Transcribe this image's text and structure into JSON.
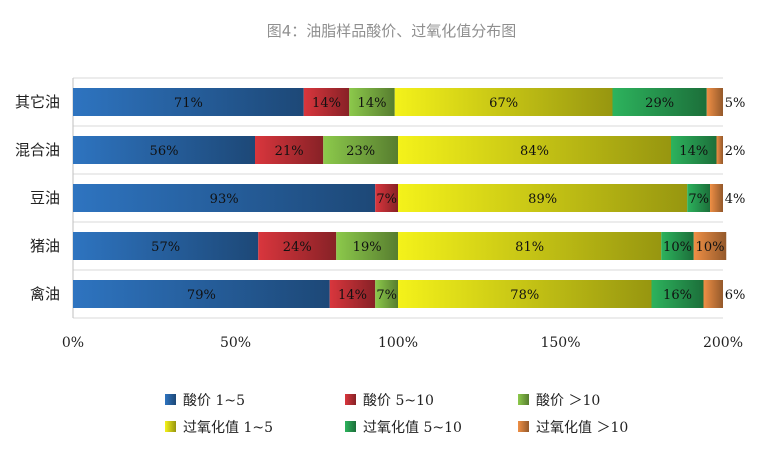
{
  "chart_data": {
    "type": "bar",
    "orientation": "horizontal",
    "stacked": true,
    "title": "图4：油脂样品酸价、过氧化值分布图",
    "categories": [
      "其它油",
      "混合油",
      "豆油",
      "猪油",
      "禽油"
    ],
    "series": [
      {
        "name": "酸价 1~5",
        "color": "#2e74c0",
        "values": [
          71,
          56,
          93,
          57,
          79
        ]
      },
      {
        "name": "酸价 5~10",
        "color": "#d9363d",
        "values": [
          14,
          21,
          7,
          24,
          14
        ]
      },
      {
        "name": "酸价 ＞10",
        "color": "#8cc94b",
        "values": [
          14,
          23,
          0,
          19,
          7
        ]
      },
      {
        "name": "过氧化值 1~5",
        "color": "#f4f21a",
        "values": [
          67,
          84,
          89,
          81,
          78
        ]
      },
      {
        "name": "过氧化值 5~10",
        "color": "#2db35d",
        "values": [
          29,
          14,
          7,
          10,
          16
        ]
      },
      {
        "name": "过氧化值 ＞10",
        "color": "#ef8f45",
        "values": [
          5,
          2,
          4,
          10,
          6
        ]
      }
    ],
    "data_labels": [
      [
        "71%",
        "14%",
        "14%",
        "67%",
        "29%",
        "5%"
      ],
      [
        "56%",
        "21%",
        "23%",
        "84%",
        "14%",
        "2%"
      ],
      [
        "93%",
        "7%",
        "",
        "89%",
        "7%",
        "4%"
      ],
      [
        "57%",
        "24%",
        "19%",
        "81%",
        "10%",
        "10%"
      ],
      [
        "79%",
        "14%",
        "7%",
        "78%",
        "16%",
        "6%"
      ]
    ],
    "x_ticks": [
      "0%",
      "50%",
      "100%",
      "150%",
      "200%"
    ],
    "xlim": [
      0,
      200
    ],
    "grid": true,
    "legend_position": "bottom"
  }
}
